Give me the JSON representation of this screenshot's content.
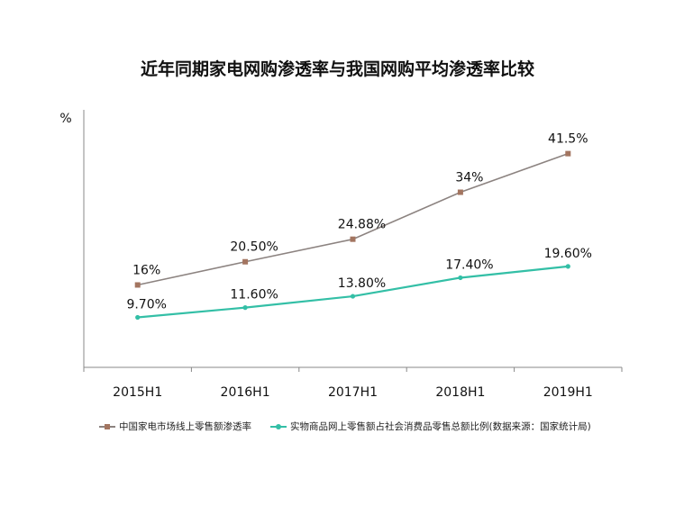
{
  "title": "近年同期家电网购渗透率与我国网购平均渗透率比较",
  "chart_data": {
    "type": "line",
    "title": "近年同期家电网购渗透率与我国网购平均渗透率比较",
    "ylabel": "%",
    "categories": [
      "2015H1",
      "2016H1",
      "2017H1",
      "2018H1",
      "2019H1"
    ],
    "ylim": [
      0,
      50
    ],
    "grid": false,
    "legend_position": "bottom",
    "series": [
      {
        "name": "中国家电市场线上零售额渗透率",
        "values": [
          16,
          20.5,
          24.88,
          34,
          41.5
        ],
        "labels": [
          "16%",
          "20.50%",
          "24.88%",
          "34%",
          "41.5%"
        ],
        "color": "#8c8380",
        "marker": "square",
        "marker_color": "#a37560"
      },
      {
        "name": "实物商品网上零售额占社会消费品零售总额比例(数据来源：国家统计局)",
        "values": [
          9.7,
          11.6,
          13.8,
          17.4,
          19.6
        ],
        "labels": [
          "9.70%",
          "11.60%",
          "13.80%",
          "17.40%",
          "19.60%"
        ],
        "color": "#33bfa6",
        "marker": "circle",
        "marker_color": "#33bfa6"
      }
    ]
  }
}
